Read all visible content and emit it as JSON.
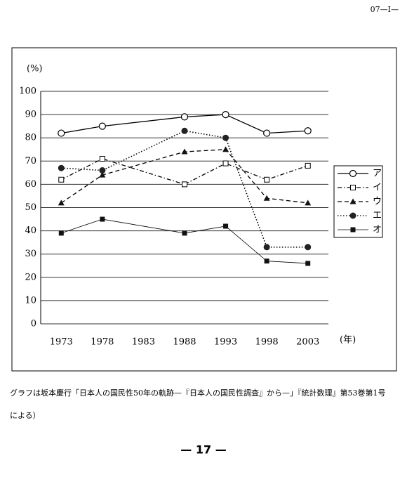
{
  "header": "07—I—",
  "chart_data": {
    "type": "line",
    "ylabel": "(%)",
    "xlabel": "(年)",
    "x": [
      1973,
      1978,
      1988,
      1993,
      1998,
      2003
    ],
    "xlim": [
      1970.5,
      2005.5
    ],
    "xticks": [
      1973,
      1978,
      1983,
      1988,
      1993,
      1998,
      2003
    ],
    "ylim": [
      0,
      100
    ],
    "yticks": [
      0,
      10,
      20,
      30,
      40,
      50,
      60,
      70,
      80,
      90,
      100
    ],
    "grid": true,
    "legend": "right",
    "series": [
      {
        "name": "ア",
        "color": "#000000",
        "dash": "solid",
        "marker": "open-circle",
        "values": [
          82,
          85,
          89,
          90,
          82,
          83
        ]
      },
      {
        "name": "イ",
        "color": "#000000",
        "dash": "dash-dot",
        "marker": "open-square",
        "values": [
          62,
          71,
          60,
          69,
          62,
          68
        ]
      },
      {
        "name": "ウ",
        "color": "#000000",
        "dash": "dash",
        "marker": "triangle",
        "values": [
          52,
          64,
          74,
          75,
          54,
          52
        ]
      },
      {
        "name": "エ",
        "color": "#000000",
        "dash": "dot",
        "marker": "filled-circle",
        "values": [
          67,
          66,
          83,
          80,
          33,
          33
        ]
      },
      {
        "name": "オ",
        "color": "#000000",
        "dash": "thin",
        "marker": "filled-square",
        "values": [
          39,
          45,
          39,
          42,
          27,
          26
        ]
      }
    ]
  },
  "caption": [
    "グラフは坂本慶行「日本人の国民性50年の軌跡—『日本人の国民性調査』から—」『統計数理』第53巻第1号",
    "による）"
  ],
  "page_number": "— 17 —"
}
